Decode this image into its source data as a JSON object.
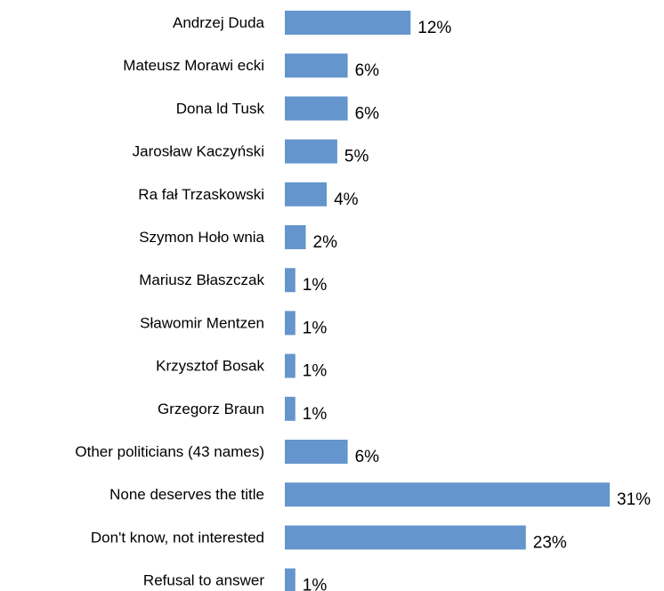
{
  "chart_data": {
    "type": "bar",
    "orientation": "horizontal",
    "categories": [
      "Andrzej Duda",
      "Mateusz Morawi ecki",
      "Dona ld Tusk",
      "Jarosław Kaczyński",
      "Ra fał Trzaskowski",
      "Szymon Hoło wnia",
      "Mariusz Błaszczak",
      "Sławomir Mentzen",
      "Krzysztof Bosak",
      "Grzegorz Braun",
      "Other politicians (43 names)",
      "None deserves the title",
      "Don't know, not interested",
      "Refusal to answer"
    ],
    "values": [
      12,
      6,
      6,
      5,
      4,
      2,
      1,
      1,
      1,
      1,
      6,
      31,
      23,
      1
    ],
    "value_labels": [
      "12%",
      "6%",
      "6%",
      "5%",
      "4%",
      "2%",
      "1%",
      "1%",
      "1%",
      "1%",
      "6%",
      "31%",
      "23%",
      "1%"
    ],
    "unit": "%",
    "xlim": [
      0,
      31
    ],
    "grid": false,
    "legend": "none",
    "bar_color": "#6495CD"
  }
}
